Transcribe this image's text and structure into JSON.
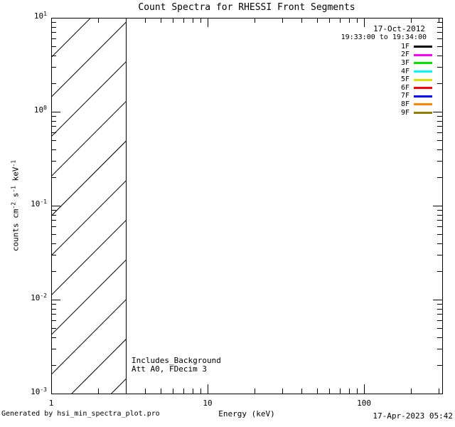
{
  "title": "Count Spectra for RHESSI Front Segments",
  "legend": {
    "date": "17-Oct-2012",
    "time_range": "19:33:00 to 19:34:00",
    "entries": [
      {
        "label": "1F",
        "color": "#000000"
      },
      {
        "label": "2F",
        "color": "#ff00ff"
      },
      {
        "label": "3F",
        "color": "#00e100"
      },
      {
        "label": "4F",
        "color": "#00ffff"
      },
      {
        "label": "5F",
        "color": "#dcdc00"
      },
      {
        "label": "6F",
        "color": "#ff0000"
      },
      {
        "label": "7F",
        "color": "#0000ff"
      },
      {
        "label": "8F",
        "color": "#ff8800"
      },
      {
        "label": "9F",
        "color": "#8f8000"
      }
    ]
  },
  "annotations": {
    "line1": "Includes_Background",
    "line2": "Att A0, FDecim 3"
  },
  "footer": {
    "generated_by": "Generated by hsi_min_spectra_plot.pro",
    "timestamp": "17-Apr-2023 05:42"
  },
  "chart_data": {
    "type": "line",
    "title": "Count Spectra for RHESSI Front Segments",
    "xlabel": "Energy (keV)",
    "ylabel_parts": [
      {
        "text": "counts cm"
      },
      {
        "sup": "-2"
      },
      {
        "text": " s"
      },
      {
        "sup": "-1"
      },
      {
        "text": " keV"
      },
      {
        "sup": "-1"
      }
    ],
    "xscale": "log",
    "yscale": "log",
    "xlim": [
      1,
      316
    ],
    "ylim": [
      0.001,
      10
    ],
    "grid": false,
    "x_ticks": [
      {
        "value": 1,
        "label": "1"
      },
      {
        "value": 10,
        "label": "10"
      },
      {
        "value": 100,
        "label": "100"
      }
    ],
    "y_ticks": [
      {
        "value": 10,
        "base": "10",
        "exp": "1"
      },
      {
        "value": 1,
        "base": "10",
        "exp": "0"
      },
      {
        "value": 0.1,
        "base": "10",
        "exp": "-1"
      },
      {
        "value": 0.01,
        "base": "10",
        "exp": "-2"
      },
      {
        "value": 0.001,
        "base": "10",
        "exp": "-3"
      }
    ],
    "series": [],
    "hatched_region": {
      "x_start": 1,
      "x_end": 3,
      "style": "diagonal-hatch"
    },
    "note": "No spectra curves drawn; plot area empty except hatched low-energy band 1-3 keV",
    "legend_position": "upper right inside plot",
    "line_color": "#000000",
    "background_color": "#ffffff"
  }
}
